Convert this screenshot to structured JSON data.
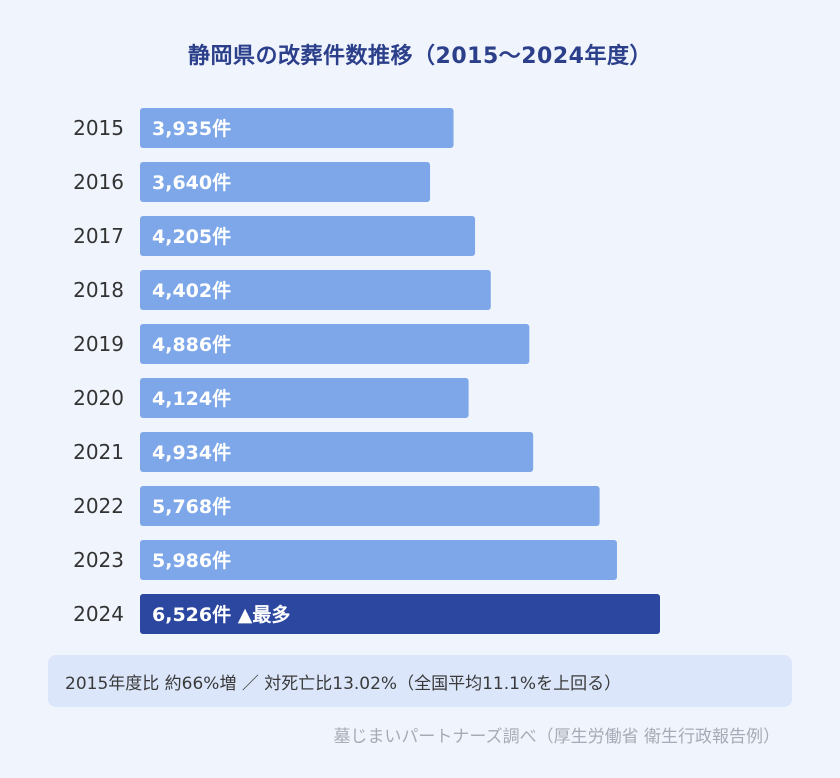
{
  "chart_data": {
    "type": "bar",
    "orientation": "horizontal",
    "title": "静岡県の改葬件数推移（2015〜2024年度）",
    "categories": [
      "2015",
      "2016",
      "2017",
      "2018",
      "2019",
      "2020",
      "2021",
      "2022",
      "2023",
      "2024"
    ],
    "values": [
      3935,
      3640,
      4205,
      4402,
      4886,
      4124,
      4934,
      5768,
      5986,
      6526
    ],
    "value_labels": [
      "3,935件",
      "3,640件",
      "4,205件",
      "4,402件",
      "4,886件",
      "4,124件",
      "4,934件",
      "5,768件",
      "5,986件",
      "6,526件"
    ],
    "highlight_index": 9,
    "highlight_suffix": "▲最多",
    "xlim": [
      0,
      7150
    ],
    "grid": false,
    "legend": "none"
  },
  "colors": {
    "bar": "#7da7e8",
    "bar_highlight": "#2c479f",
    "title": "#2b3f8a",
    "year_label": "#333333",
    "value_label": "#ffffff"
  },
  "note": "2015年度比 約66%増 ／ 対死亡比13.02%（全国平均11.1%を上回る）",
  "source": "墓じまいパートナーズ調べ（厚生労働省 衛生行政報告例）"
}
